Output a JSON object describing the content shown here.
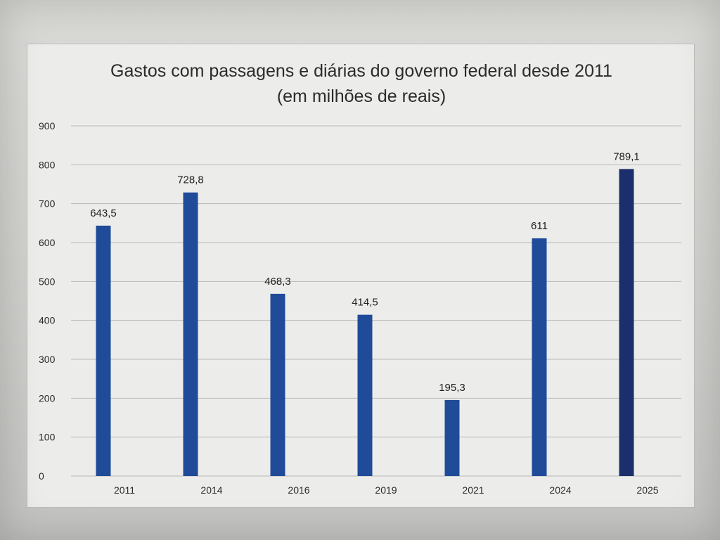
{
  "chart_data": {
    "type": "bar",
    "title": "Gastos com passagens e diárias do governo federal desde 2011",
    "subtitle": "(em milhões de reais)",
    "xlabel": "",
    "ylabel": "",
    "categories": [
      "2011",
      "2014",
      "2016",
      "2019",
      "2021",
      "2024",
      "2025"
    ],
    "values": [
      643.5,
      728.8,
      468.3,
      414.5,
      195.3,
      611,
      789.1
    ],
    "data_labels": [
      "643,5",
      "728,8",
      "468,3",
      "414,5",
      "195,3",
      "611",
      "789,1"
    ],
    "ylim": [
      0,
      900
    ],
    "yticks": [
      0,
      100,
      200,
      300,
      400,
      500,
      600,
      700,
      800,
      900
    ],
    "grid": true,
    "legend": "none",
    "colors": {
      "bar": "#1f4b99",
      "bar_last": "#1a2f6b",
      "grid": "#b9b9b7"
    }
  }
}
